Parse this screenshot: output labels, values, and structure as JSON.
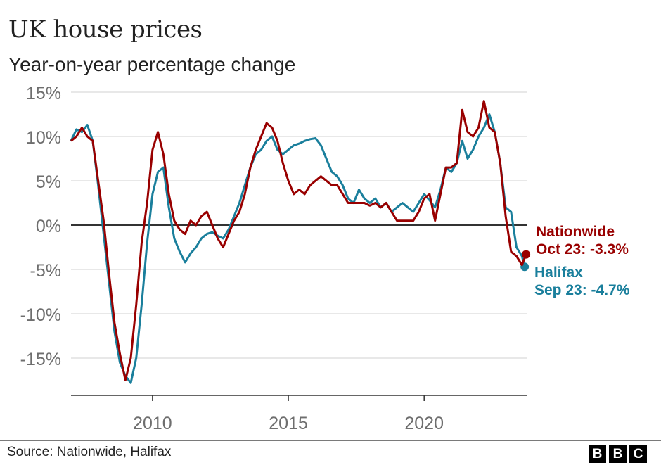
{
  "header": {
    "title": "UK house prices",
    "subtitle": "Year-on-year percentage change"
  },
  "footer": {
    "source": "Source: Nationwide, Halifax",
    "logo_letters": [
      "B",
      "B",
      "C"
    ]
  },
  "chart_data": {
    "type": "line",
    "title": "UK house prices",
    "subtitle": "Year-on-year percentage change",
    "xlabel": "",
    "ylabel": "",
    "xlim": [
      2007.0,
      2023.8
    ],
    "ylim": [
      -19,
      15
    ],
    "yticks": [
      15,
      10,
      5,
      0,
      -5,
      -10,
      -15
    ],
    "ytick_labels": [
      "15%",
      "10%",
      "5%",
      "0%",
      "-5%",
      "-10%",
      "-15%"
    ],
    "xticks": [
      2010,
      2015,
      2020
    ],
    "xtick_labels": [
      "2010",
      "2015",
      "2020"
    ],
    "grid": true,
    "series": [
      {
        "name": "Halifax",
        "color": "#1a7f9c",
        "label_line1": "Halifax",
        "label_line2": "Sep 23: -4.7%",
        "points": [
          [
            2007.0,
            9.5
          ],
          [
            2007.2,
            10.8
          ],
          [
            2007.4,
            10.5
          ],
          [
            2007.6,
            11.3
          ],
          [
            2007.8,
            9.5
          ],
          [
            2008.0,
            4.5
          ],
          [
            2008.2,
            -1.0
          ],
          [
            2008.4,
            -6.5
          ],
          [
            2008.6,
            -12.0
          ],
          [
            2008.8,
            -15.5
          ],
          [
            2009.0,
            -17.0
          ],
          [
            2009.2,
            -17.8
          ],
          [
            2009.4,
            -15.0
          ],
          [
            2009.6,
            -9.0
          ],
          [
            2009.8,
            -2.0
          ],
          [
            2010.0,
            3.5
          ],
          [
            2010.2,
            6.0
          ],
          [
            2010.4,
            6.5
          ],
          [
            2010.6,
            2.0
          ],
          [
            2010.8,
            -1.5
          ],
          [
            2011.0,
            -3.0
          ],
          [
            2011.2,
            -4.2
          ],
          [
            2011.4,
            -3.2
          ],
          [
            2011.6,
            -2.5
          ],
          [
            2011.8,
            -1.5
          ],
          [
            2012.0,
            -1.0
          ],
          [
            2012.2,
            -0.8
          ],
          [
            2012.4,
            -1.2
          ],
          [
            2012.6,
            -1.5
          ],
          [
            2012.8,
            -0.5
          ],
          [
            2013.0,
            1.0
          ],
          [
            2013.2,
            2.5
          ],
          [
            2013.4,
            4.5
          ],
          [
            2013.6,
            6.5
          ],
          [
            2013.8,
            8.0
          ],
          [
            2014.0,
            8.5
          ],
          [
            2014.2,
            9.5
          ],
          [
            2014.4,
            10.0
          ],
          [
            2014.6,
            8.5
          ],
          [
            2014.8,
            8.0
          ],
          [
            2015.0,
            8.5
          ],
          [
            2015.2,
            9.0
          ],
          [
            2015.4,
            9.2
          ],
          [
            2015.6,
            9.5
          ],
          [
            2015.8,
            9.7
          ],
          [
            2016.0,
            9.8
          ],
          [
            2016.2,
            9.0
          ],
          [
            2016.4,
            7.5
          ],
          [
            2016.6,
            6.0
          ],
          [
            2016.8,
            5.5
          ],
          [
            2017.0,
            4.5
          ],
          [
            2017.2,
            3.0
          ],
          [
            2017.4,
            2.5
          ],
          [
            2017.6,
            4.0
          ],
          [
            2017.8,
            3.0
          ],
          [
            2018.0,
            2.5
          ],
          [
            2018.2,
            3.0
          ],
          [
            2018.4,
            2.0
          ],
          [
            2018.6,
            2.5
          ],
          [
            2018.8,
            1.5
          ],
          [
            2019.0,
            2.0
          ],
          [
            2019.2,
            2.5
          ],
          [
            2019.4,
            2.0
          ],
          [
            2019.6,
            1.5
          ],
          [
            2019.8,
            2.5
          ],
          [
            2020.0,
            3.5
          ],
          [
            2020.2,
            2.8
          ],
          [
            2020.4,
            2.0
          ],
          [
            2020.6,
            4.0
          ],
          [
            2020.8,
            6.5
          ],
          [
            2021.0,
            6.0
          ],
          [
            2021.2,
            7.0
          ],
          [
            2021.4,
            9.5
          ],
          [
            2021.6,
            7.5
          ],
          [
            2021.8,
            8.5
          ],
          [
            2022.0,
            10.0
          ],
          [
            2022.2,
            11.0
          ],
          [
            2022.4,
            12.5
          ],
          [
            2022.6,
            10.5
          ],
          [
            2022.8,
            7.0
          ],
          [
            2023.0,
            2.0
          ],
          [
            2023.2,
            1.5
          ],
          [
            2023.4,
            -2.5
          ],
          [
            2023.6,
            -3.5
          ],
          [
            2023.7,
            -4.7
          ]
        ]
      },
      {
        "name": "Nationwide",
        "color": "#990000",
        "label_line1": "Nationwide",
        "label_line2": "Oct 23: -3.3%",
        "points": [
          [
            2007.0,
            9.5
          ],
          [
            2007.2,
            10.0
          ],
          [
            2007.4,
            11.0
          ],
          [
            2007.6,
            10.0
          ],
          [
            2007.8,
            9.5
          ],
          [
            2008.0,
            5.0
          ],
          [
            2008.2,
            0.5
          ],
          [
            2008.4,
            -5.5
          ],
          [
            2008.6,
            -11.0
          ],
          [
            2008.8,
            -14.5
          ],
          [
            2009.0,
            -17.5
          ],
          [
            2009.2,
            -15.0
          ],
          [
            2009.4,
            -9.0
          ],
          [
            2009.6,
            -2.0
          ],
          [
            2009.8,
            2.5
          ],
          [
            2010.0,
            8.5
          ],
          [
            2010.2,
            10.5
          ],
          [
            2010.4,
            8.0
          ],
          [
            2010.6,
            3.5
          ],
          [
            2010.8,
            0.5
          ],
          [
            2011.0,
            -0.5
          ],
          [
            2011.2,
            -1.0
          ],
          [
            2011.4,
            0.5
          ],
          [
            2011.6,
            0.0
          ],
          [
            2011.8,
            1.0
          ],
          [
            2012.0,
            1.5
          ],
          [
            2012.2,
            0.0
          ],
          [
            2012.4,
            -1.5
          ],
          [
            2012.6,
            -2.5
          ],
          [
            2012.8,
            -1.0
          ],
          [
            2013.0,
            0.5
          ],
          [
            2013.2,
            1.5
          ],
          [
            2013.4,
            3.5
          ],
          [
            2013.6,
            6.5
          ],
          [
            2013.8,
            8.5
          ],
          [
            2014.0,
            10.0
          ],
          [
            2014.2,
            11.5
          ],
          [
            2014.4,
            11.0
          ],
          [
            2014.6,
            9.5
          ],
          [
            2014.8,
            7.0
          ],
          [
            2015.0,
            5.0
          ],
          [
            2015.2,
            3.5
          ],
          [
            2015.4,
            4.0
          ],
          [
            2015.6,
            3.5
          ],
          [
            2015.8,
            4.5
          ],
          [
            2016.0,
            5.0
          ],
          [
            2016.2,
            5.5
          ],
          [
            2016.4,
            5.0
          ],
          [
            2016.6,
            4.5
          ],
          [
            2016.8,
            4.5
          ],
          [
            2017.0,
            3.5
          ],
          [
            2017.2,
            2.5
          ],
          [
            2017.4,
            2.5
          ],
          [
            2017.6,
            2.5
          ],
          [
            2017.8,
            2.5
          ],
          [
            2018.0,
            2.2
          ],
          [
            2018.2,
            2.5
          ],
          [
            2018.4,
            2.0
          ],
          [
            2018.6,
            2.5
          ],
          [
            2018.8,
            1.5
          ],
          [
            2019.0,
            0.5
          ],
          [
            2019.2,
            0.5
          ],
          [
            2019.4,
            0.5
          ],
          [
            2019.6,
            0.5
          ],
          [
            2019.8,
            1.5
          ],
          [
            2020.0,
            3.0
          ],
          [
            2020.2,
            3.5
          ],
          [
            2020.4,
            0.5
          ],
          [
            2020.6,
            3.5
          ],
          [
            2020.8,
            6.5
          ],
          [
            2021.0,
            6.5
          ],
          [
            2021.2,
            7.0
          ],
          [
            2021.4,
            13.0
          ],
          [
            2021.6,
            10.5
          ],
          [
            2021.8,
            10.0
          ],
          [
            2022.0,
            11.0
          ],
          [
            2022.2,
            14.0
          ],
          [
            2022.4,
            11.0
          ],
          [
            2022.6,
            10.5
          ],
          [
            2022.8,
            7.0
          ],
          [
            2023.0,
            1.0
          ],
          [
            2023.2,
            -3.0
          ],
          [
            2023.4,
            -3.5
          ],
          [
            2023.6,
            -4.5
          ],
          [
            2023.75,
            -3.3
          ]
        ]
      }
    ]
  }
}
